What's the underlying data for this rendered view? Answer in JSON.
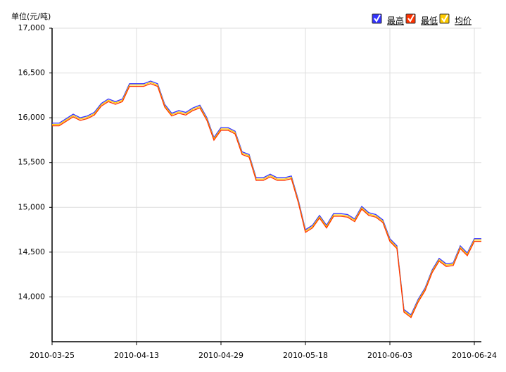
{
  "chart_data": {
    "type": "line",
    "y_label": "单位(元/吨)",
    "categories": [
      "2010-03-25",
      null,
      null,
      null,
      null,
      null,
      null,
      null,
      null,
      null,
      null,
      null,
      "2010-04-13",
      null,
      null,
      null,
      null,
      null,
      null,
      null,
      null,
      null,
      null,
      null,
      "2010-04-29",
      null,
      null,
      null,
      null,
      null,
      null,
      null,
      null,
      null,
      null,
      null,
      "2010-05-18",
      null,
      null,
      null,
      null,
      null,
      null,
      null,
      null,
      null,
      null,
      null,
      "2010-06-03",
      null,
      null,
      null,
      null,
      null,
      null,
      null,
      null,
      null,
      null,
      null,
      "2010-06-24",
      null
    ],
    "series": [
      {
        "name": "最高",
        "color": "#3333ff",
        "values": [
          15940,
          15940,
          15990,
          16040,
          16000,
          16020,
          16060,
          16160,
          16210,
          16180,
          16210,
          16380,
          16380,
          16380,
          16410,
          16380,
          16150,
          16050,
          16080,
          16060,
          16110,
          16140,
          16000,
          15780,
          15890,
          15890,
          15850,
          15620,
          15590,
          15330,
          15330,
          15370,
          15330,
          15330,
          15350,
          15080,
          14750,
          14800,
          14910,
          14800,
          14930,
          14930,
          14920,
          14870,
          15010,
          14940,
          14920,
          14860,
          14650,
          14570,
          13860,
          13800,
          13970,
          14100,
          14300,
          14430,
          14370,
          14380,
          14570,
          14490,
          14650,
          14650
        ]
      },
      {
        "name": "最低",
        "color": "#ff3300",
        "values": [
          15910,
          15910,
          15960,
          16010,
          15970,
          15990,
          16030,
          16130,
          16180,
          16150,
          16180,
          16350,
          16350,
          16350,
          16380,
          16350,
          16120,
          16020,
          16050,
          16030,
          16080,
          16110,
          15970,
          15750,
          15860,
          15860,
          15820,
          15590,
          15560,
          15300,
          15300,
          15340,
          15300,
          15300,
          15320,
          15050,
          14720,
          14770,
          14880,
          14770,
          14900,
          14900,
          14890,
          14840,
          14980,
          14910,
          14890,
          14830,
          14620,
          14540,
          13830,
          13770,
          13940,
          14070,
          14270,
          14400,
          14340,
          14350,
          14540,
          14460,
          14620,
          14620
        ]
      },
      {
        "name": "均价",
        "color": "#ffcc00",
        "values": [
          15925,
          15925,
          15975,
          16025,
          15985,
          16005,
          16045,
          16145,
          16195,
          16165,
          16195,
          16365,
          16365,
          16365,
          16395,
          16365,
          16135,
          16035,
          16065,
          16045,
          16095,
          16125,
          15985,
          15765,
          15875,
          15875,
          15835,
          15605,
          15575,
          15315,
          15315,
          15355,
          15315,
          15315,
          15335,
          15065,
          14735,
          14785,
          14895,
          14785,
          14915,
          14915,
          14905,
          14855,
          14995,
          14925,
          14905,
          14845,
          14635,
          14555,
          13845,
          13785,
          13955,
          14085,
          14285,
          14415,
          14355,
          14365,
          14555,
          14475,
          14635,
          14635
        ]
      }
    ],
    "ylim": [
      13500,
      17000
    ],
    "yticks": [
      {
        "value": 14000,
        "label": "14,000"
      },
      {
        "value": 14500,
        "label": "14,500"
      },
      {
        "value": 15000,
        "label": "15,000"
      },
      {
        "value": 15500,
        "label": "15,500"
      },
      {
        "value": 16000,
        "label": "16,000"
      },
      {
        "value": 16500,
        "label": "16,500"
      },
      {
        "value": 17000,
        "label": "17,000"
      }
    ],
    "grid": true,
    "legend": "top-right"
  }
}
